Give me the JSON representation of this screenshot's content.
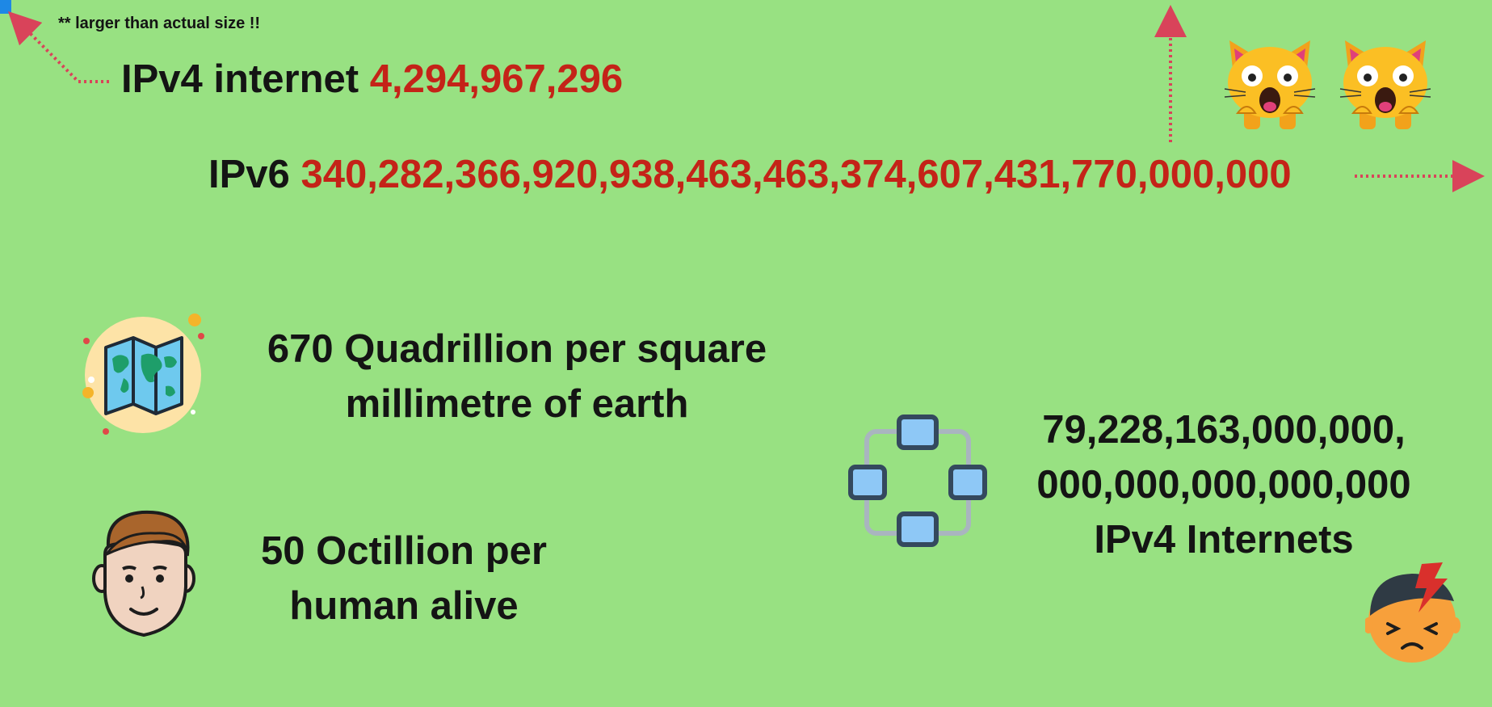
{
  "note": "** larger than actual size !!",
  "ipv4": {
    "label": "IPv4 internet",
    "count": "4,294,967,296"
  },
  "ipv6": {
    "label": "IPv6",
    "count": "340,282,366,920,938,463,463,374,607,431,770,000,000"
  },
  "stats": {
    "earth_line1": "670 Quadrillion per square",
    "earth_line2": "millimetre of earth",
    "human_line1": "50 Octillion per",
    "human_line2": "human alive",
    "internets_line1": "79,228,163,000,000,",
    "internets_line2": "000,000,000,000,000",
    "internets_line3": "IPv4 Internets"
  },
  "icons": {
    "map": "folded-world-map-icon",
    "human": "man-face-icon",
    "network": "network-nodes-icon",
    "cats": "screaming-cat-emoji",
    "stressed": "stressed-face-lightning-icon",
    "arrows": "dotted-arrow-icon"
  },
  "colors": {
    "background": "#98e182",
    "accent_red": "#c42318",
    "arrow": "#d9435a",
    "node_blue": "#8ec8f6"
  }
}
